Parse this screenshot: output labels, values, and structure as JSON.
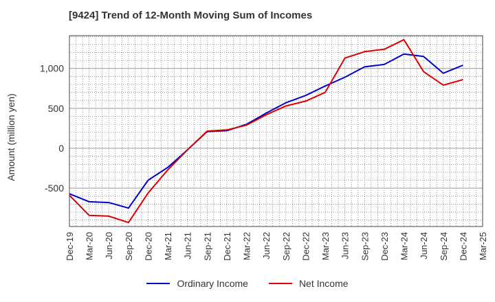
{
  "chart_data": {
    "type": "line",
    "title": "[9424]  Trend of 12-Month Moving Sum of Incomes",
    "xlabel": "",
    "ylabel": "Amount (million yen)",
    "ylim": [
      -980,
      1410
    ],
    "yticks": [
      -500,
      0,
      500,
      1000
    ],
    "ytick_labels": [
      "-500",
      "0",
      "500",
      "1,000"
    ],
    "x": [
      "Dec-19",
      "Mar-20",
      "Jun-20",
      "Sep-20",
      "Dec-20",
      "Mar-21",
      "Jun-21",
      "Sep-21",
      "Dec-21",
      "Mar-22",
      "Jun-22",
      "Sep-22",
      "Dec-22",
      "Mar-23",
      "Jun-23",
      "Sep-23",
      "Dec-23",
      "Mar-24",
      "Jun-24",
      "Sep-24",
      "Dec-24",
      "Mar-25"
    ],
    "series": [
      {
        "name": "Ordinary Income",
        "color": "#0000cc",
        "values": [
          -570,
          -670,
          -680,
          -750,
          -400,
          -240,
          -20,
          210,
          220,
          300,
          440,
          570,
          660,
          780,
          890,
          1020,
          1050,
          1180,
          1150,
          940,
          1040,
          null
        ]
      },
      {
        "name": "Net Income",
        "color": "#dd0000",
        "values": [
          -590,
          -840,
          -850,
          -930,
          -560,
          -270,
          -20,
          215,
          230,
          290,
          420,
          530,
          590,
          700,
          1130,
          1210,
          1240,
          1360,
          960,
          790,
          860,
          null
        ]
      }
    ],
    "grid": true,
    "legend": "bottom"
  }
}
